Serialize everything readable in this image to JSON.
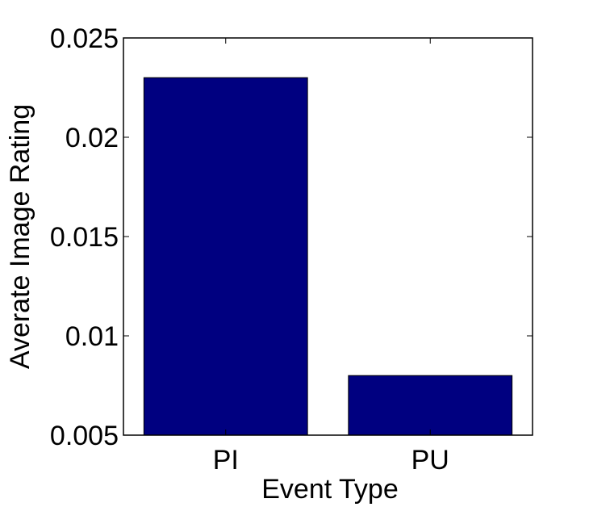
{
  "chart_data": {
    "type": "bar",
    "categories": [
      "PI",
      "PU"
    ],
    "values": [
      0.023,
      0.008
    ],
    "xlabel": "Event Type",
    "ylabel": "Averate Image Rating",
    "ylim": [
      0.005,
      0.025
    ],
    "yticks": [
      0.005,
      0.01,
      0.015,
      0.02,
      0.025
    ],
    "ytick_labels": [
      "0.005",
      "0.01",
      "0.015",
      "0.02",
      "0.025"
    ],
    "grid": false,
    "bar_color": "#000080"
  }
}
